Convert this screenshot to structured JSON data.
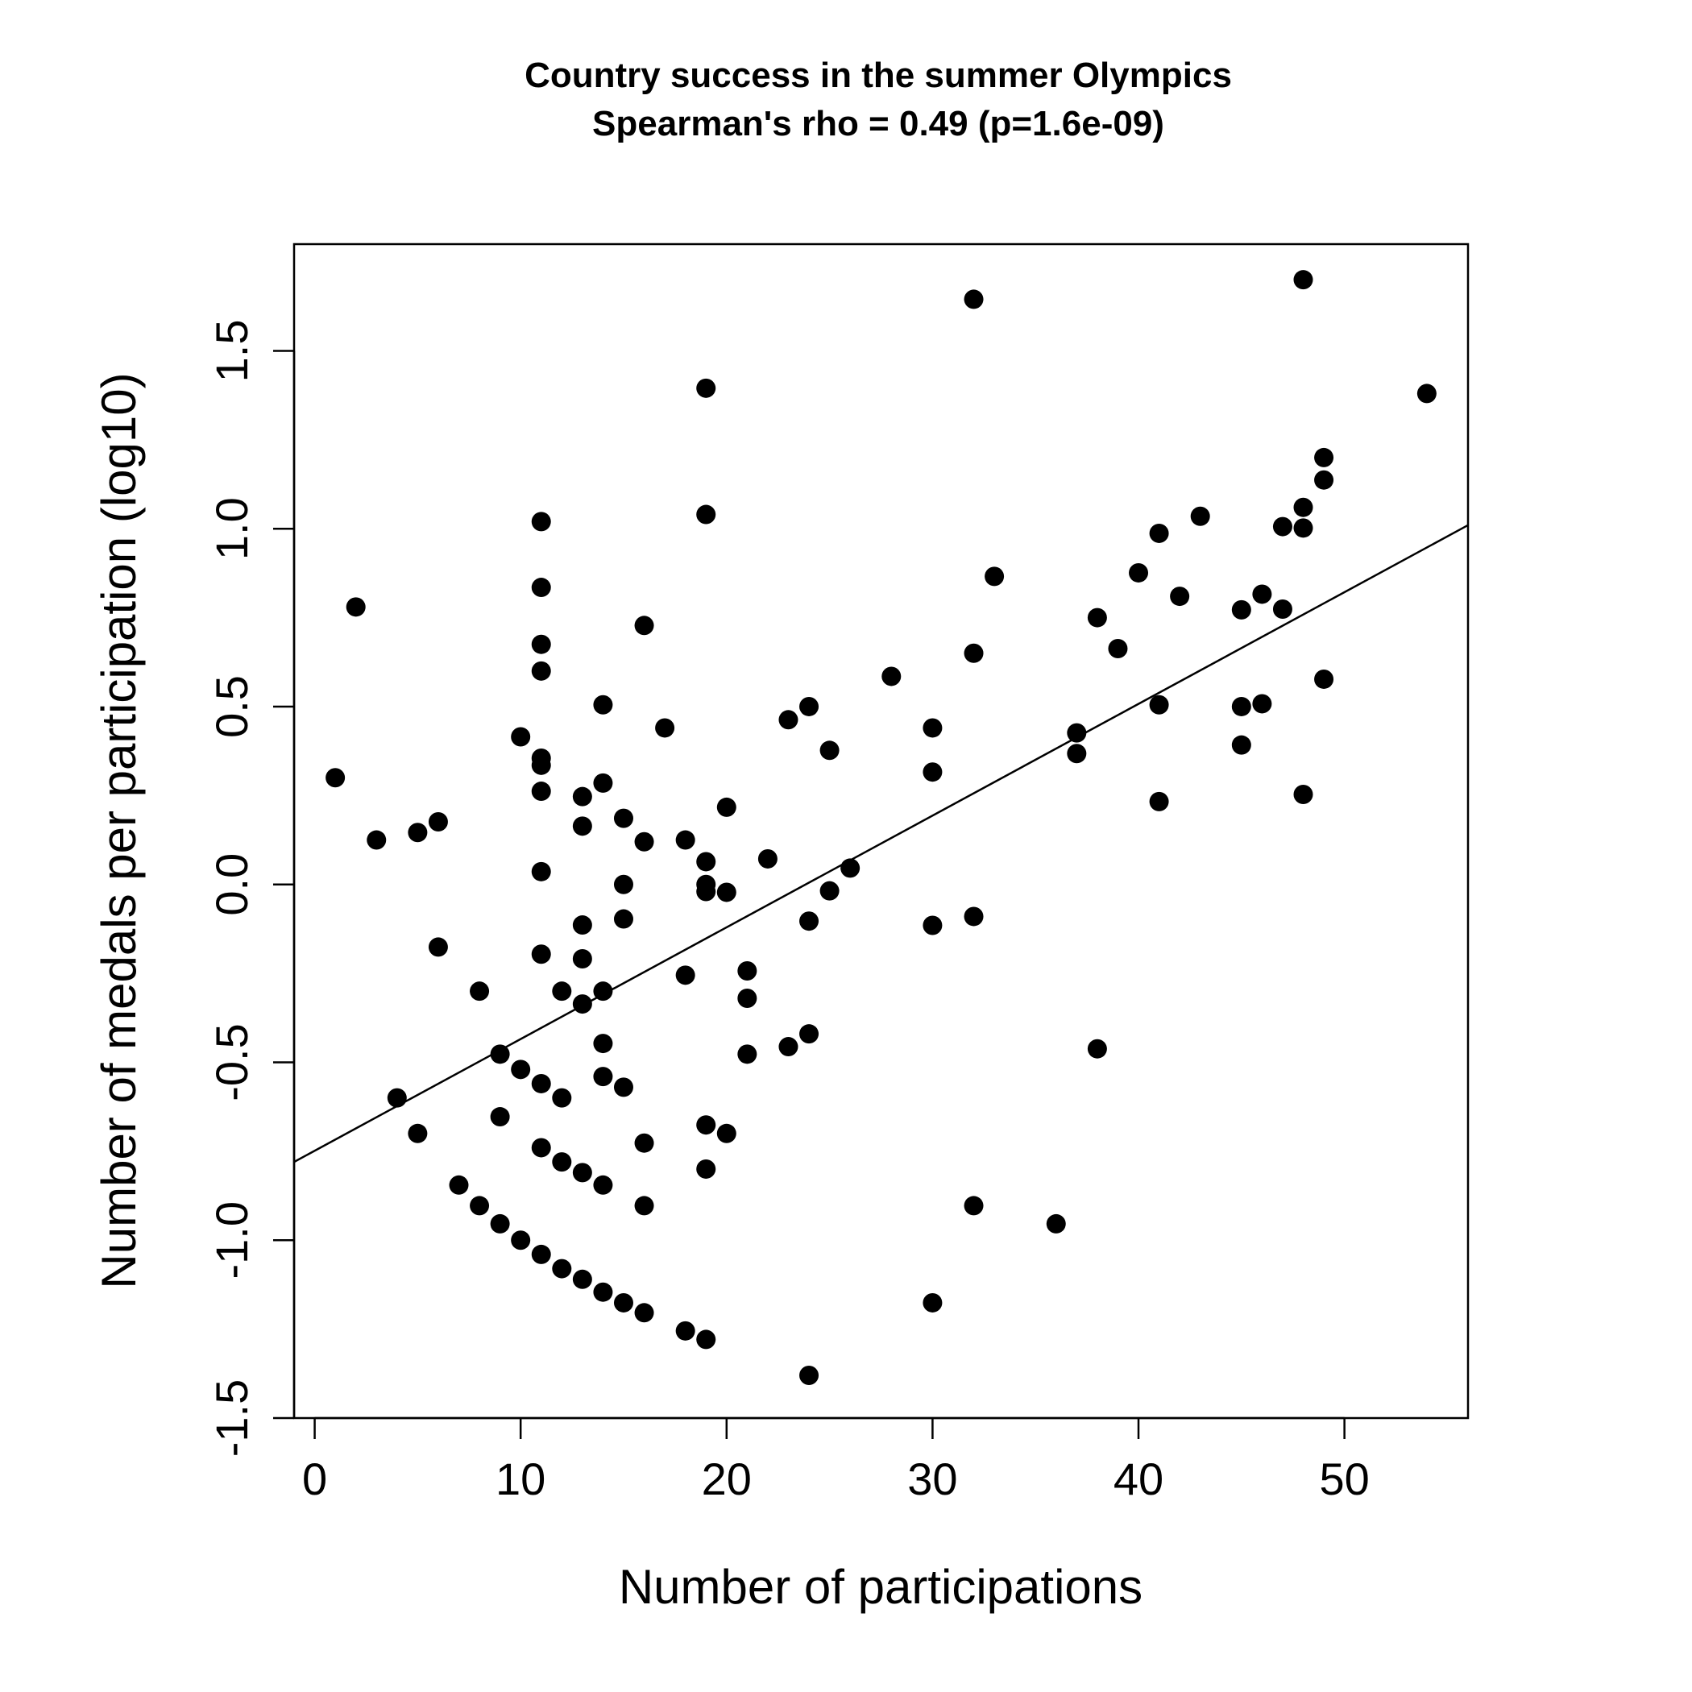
{
  "chart_data": {
    "type": "scatter",
    "title": "Country success in the summer Olympics",
    "subtitle": "Spearman's rho = 0.49 (p=1.6e-09)",
    "xlabel": "Number of participations",
    "ylabel": "Number of medals per participation (log10)",
    "xlim": [
      -1,
      56
    ],
    "ylim": [
      -1.5,
      1.8
    ],
    "xticks": [
      0,
      10,
      20,
      30,
      40,
      50
    ],
    "yticks": [
      -1.5,
      -1.0,
      -0.5,
      0.0,
      0.5,
      1.0,
      1.5
    ],
    "xtick_labels": [
      "0",
      "10",
      "20",
      "30",
      "40",
      "50"
    ],
    "ytick_labels": [
      "-1.5",
      "-1.0",
      "-0.5",
      "0.0",
      "0.5",
      "1.0",
      "1.5"
    ],
    "grid": false,
    "point_color": "#000000",
    "trend_line": {
      "x": [
        -1,
        56
      ],
      "y": [
        -0.78,
        1.01
      ]
    },
    "points": [
      [
        1,
        0.3
      ],
      [
        2,
        0.78
      ],
      [
        3,
        0.125
      ],
      [
        4,
        -0.6
      ],
      [
        5,
        0.146
      ],
      [
        5,
        -0.7
      ],
      [
        6,
        0.176
      ],
      [
        6,
        -0.176
      ],
      [
        7,
        -0.845
      ],
      [
        8,
        -0.3
      ],
      [
        8,
        -0.903
      ],
      [
        9,
        -0.477
      ],
      [
        9,
        -0.653
      ],
      [
        9,
        -0.954
      ],
      [
        10,
        0.415
      ],
      [
        10,
        -0.52
      ],
      [
        10,
        -1.0
      ],
      [
        11,
        1.02
      ],
      [
        11,
        0.835
      ],
      [
        11,
        0.675
      ],
      [
        11,
        0.6
      ],
      [
        11,
        0.355
      ],
      [
        11,
        0.335
      ],
      [
        11,
        0.262
      ],
      [
        11,
        0.036
      ],
      [
        11,
        -0.196
      ],
      [
        11,
        -0.56
      ],
      [
        11,
        -0.74
      ],
      [
        11,
        -1.04
      ],
      [
        12,
        -0.3
      ],
      [
        12,
        -0.6
      ],
      [
        12,
        -0.78
      ],
      [
        12,
        -1.08
      ],
      [
        13,
        0.247
      ],
      [
        13,
        0.164
      ],
      [
        13,
        -0.114
      ],
      [
        13,
        -0.209
      ],
      [
        13,
        -0.336
      ],
      [
        13,
        -0.81
      ],
      [
        13,
        -1.11
      ],
      [
        14,
        0.505
      ],
      [
        14,
        0.285
      ],
      [
        14,
        -0.3
      ],
      [
        14,
        -0.447
      ],
      [
        14,
        -0.54
      ],
      [
        14,
        -0.845
      ],
      [
        14,
        -1.146
      ],
      [
        15,
        0.186
      ],
      [
        15,
        0.0
      ],
      [
        15,
        -0.097
      ],
      [
        15,
        -0.57
      ],
      [
        15,
        -1.176
      ],
      [
        16,
        0.728
      ],
      [
        16,
        0.12
      ],
      [
        16,
        -0.727
      ],
      [
        16,
        -0.903
      ],
      [
        16,
        -1.204
      ],
      [
        17,
        0.44
      ],
      [
        18,
        0.125
      ],
      [
        18,
        -0.255
      ],
      [
        18,
        -1.255
      ],
      [
        19,
        1.395
      ],
      [
        19,
        1.04
      ],
      [
        19,
        0.064
      ],
      [
        19,
        0.0
      ],
      [
        19,
        -0.02
      ],
      [
        19,
        -0.676
      ],
      [
        19,
        -0.8
      ],
      [
        19,
        -1.279
      ],
      [
        20,
        0.217
      ],
      [
        20,
        -0.022
      ],
      [
        20,
        -0.7
      ],
      [
        21,
        -0.243
      ],
      [
        21,
        -0.32
      ],
      [
        21,
        -0.477
      ],
      [
        22,
        0.072
      ],
      [
        23,
        0.463
      ],
      [
        23,
        -0.456
      ],
      [
        24,
        0.5
      ],
      [
        24,
        -0.103
      ],
      [
        24,
        -0.42
      ],
      [
        24,
        -1.38
      ],
      [
        25,
        0.377
      ],
      [
        25,
        -0.018
      ],
      [
        26,
        0.046
      ],
      [
        28,
        0.585
      ],
      [
        30,
        0.44
      ],
      [
        30,
        0.316
      ],
      [
        30,
        -0.115
      ],
      [
        30,
        -1.176
      ],
      [
        32,
        1.645
      ],
      [
        32,
        0.65
      ],
      [
        32,
        -0.09
      ],
      [
        32,
        -0.903
      ],
      [
        33,
        0.866
      ],
      [
        36,
        -0.954
      ],
      [
        37,
        0.426
      ],
      [
        37,
        0.368
      ],
      [
        38,
        0.75
      ],
      [
        38,
        -0.462
      ],
      [
        39,
        0.663
      ],
      [
        40,
        0.876
      ],
      [
        41,
        0.987
      ],
      [
        41,
        0.505
      ],
      [
        41,
        0.233
      ],
      [
        42,
        0.81
      ],
      [
        43,
        1.035
      ],
      [
        45,
        0.772
      ],
      [
        45,
        0.5
      ],
      [
        45,
        0.392
      ],
      [
        46,
        0.816
      ],
      [
        46,
        0.508
      ],
      [
        47,
        1.006
      ],
      [
        47,
        0.774
      ],
      [
        48,
        1.7
      ],
      [
        48,
        1.06
      ],
      [
        48,
        1.002
      ],
      [
        48,
        0.253
      ],
      [
        49,
        1.2
      ],
      [
        49,
        1.137
      ],
      [
        49,
        0.577
      ],
      [
        54,
        1.38
      ]
    ]
  }
}
